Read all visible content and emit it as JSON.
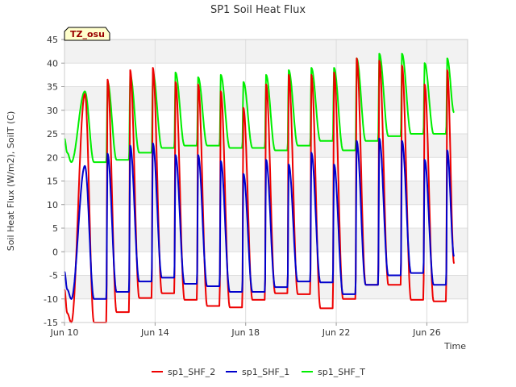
{
  "chart_data": {
    "type": "line",
    "title": "SP1 Soil Heat Flux",
    "xlabel": "Time",
    "ylabel": "Soil Heat Flux (W/m2), SoilT (C)",
    "badge": "TZ_osu",
    "xlim": [
      0,
      17.8
    ],
    "ylim": [
      -15,
      45
    ],
    "yticks": [
      -15,
      -10,
      -5,
      0,
      5,
      10,
      15,
      20,
      25,
      30,
      35,
      40,
      45
    ],
    "xticks": [
      {
        "x": 0,
        "label": "Jun 10"
      },
      {
        "x": 4,
        "label": "Jun 14"
      },
      {
        "x": 8,
        "label": "Jun 18"
      },
      {
        "x": 12,
        "label": "Jun 22"
      },
      {
        "x": 16,
        "label": "Jun 26"
      }
    ],
    "grid": true,
    "legend_position": "bottom",
    "series": [
      {
        "name": "sp1_SHF_2",
        "color": "#ee0000",
        "peaks": [
          33.5,
          36.5,
          38.5,
          39,
          36,
          35.5,
          34,
          30.5,
          35.5,
          37.5,
          37.5,
          38,
          41,
          40.5,
          39.5,
          35.5,
          38.5
        ],
        "troughs": [
          -15,
          -12.8,
          -9.8,
          -8.8,
          -10.2,
          -11.5,
          -11.8,
          -10.2,
          -8.8,
          -9,
          -12,
          -10,
          -7,
          -7,
          -10.2,
          -10.5
        ],
        "start": -8,
        "end": -2.5
      },
      {
        "name": "sp1_SHF_1",
        "color": "#0000cc",
        "peaks": [
          18.2,
          20.8,
          22.5,
          23,
          20.5,
          20.5,
          19.2,
          16.5,
          19.5,
          18.5,
          21,
          18.5,
          23.5,
          24,
          23.5,
          19.5,
          21.5
        ],
        "troughs": [
          -10,
          -8.5,
          -6.3,
          -5.5,
          -6.8,
          -7.3,
          -8.5,
          -8.5,
          -7.5,
          -6.3,
          -6.5,
          -9,
          -7,
          -5,
          -4.5,
          -7,
          -7.5
        ],
        "start": -4.2,
        "end": -1
      },
      {
        "name": "sp1_SHF_T",
        "color": "#00ee00",
        "peaks": [
          34,
          36,
          37.5,
          38,
          38,
          37,
          37.5,
          36,
          37.5,
          38.5,
          39,
          39,
          41,
          42,
          42,
          40,
          41
        ],
        "troughs": [
          19,
          19.5,
          21,
          22,
          22.5,
          22.5,
          22,
          22,
          21.5,
          22.5,
          23.5,
          21.5,
          23.5,
          24.5,
          25,
          25,
          23.5
        ],
        "start": 24,
        "end": 29.5
      }
    ]
  }
}
